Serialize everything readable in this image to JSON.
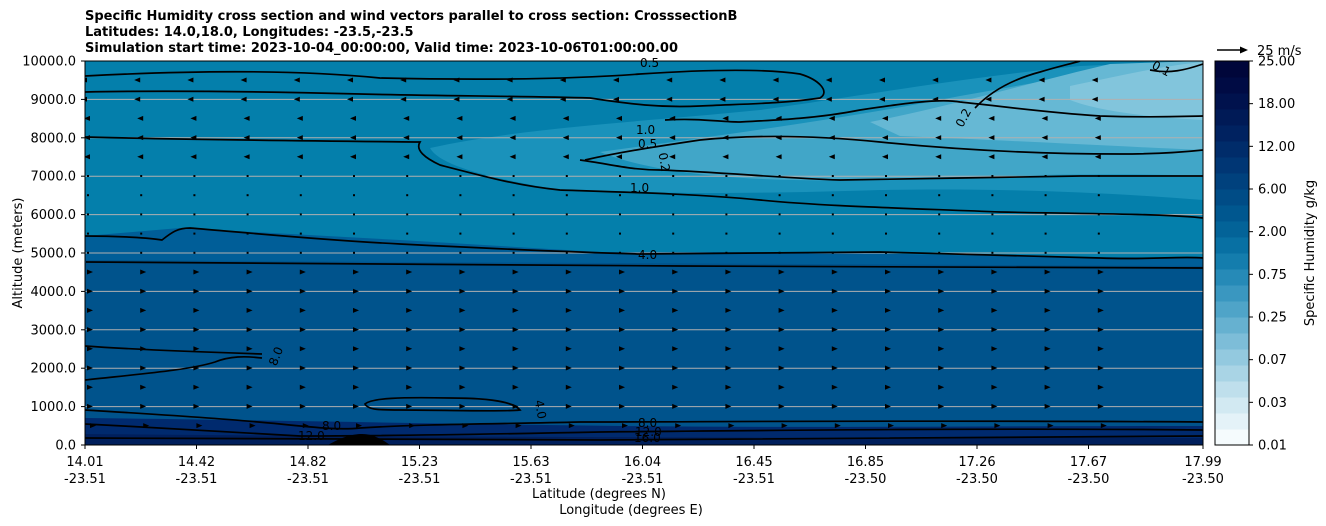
{
  "title": {
    "line1": "Specific Humidity cross section and wind vectors parallel to cross section: CrosssectionB",
    "line2": "Latitudes: 14.0,18.0, Longitudes: -23.5,-23.5",
    "line3": "Simulation start time: 2023-10-04_00:00:00, Valid time: 2023-10-06T01:00:00.00"
  },
  "chart_data": {
    "type": "contour",
    "title": "Specific Humidity cross section and wind vectors parallel to cross section: CrosssectionB",
    "xlabel_lat": "Latitude (degrees N)",
    "xlabel_lon": "Longitude (degrees E)",
    "ylabel": "Altitude (meters)",
    "ylim": [
      0,
      10000
    ],
    "y_ticks": [
      "0.0",
      "1000.0",
      "2000.0",
      "3000.0",
      "4000.0",
      "5000.0",
      "6000.0",
      "7000.0",
      "8000.0",
      "9000.0",
      "10000.0"
    ],
    "x_ticks_lat": [
      "14.01",
      "14.42",
      "14.82",
      "15.23",
      "15.63",
      "16.04",
      "16.45",
      "16.85",
      "17.26",
      "17.67",
      "17.99"
    ],
    "x_ticks_lon": [
      "-23.51",
      "-23.51",
      "-23.51",
      "-23.51",
      "-23.51",
      "-23.51",
      "-23.51",
      "-23.50",
      "-23.50",
      "-23.50",
      "-23.50"
    ],
    "colorbar": {
      "label": "Specific Humidity g/kg",
      "tick_labels": [
        "0.01",
        "0.03",
        "0.07",
        "0.25",
        "0.75",
        "2.00",
        "6.00",
        "12.00",
        "18.00",
        "25.00"
      ]
    },
    "wind_key": "25 m/s",
    "contour_labels": [
      "0.5",
      "0.1",
      "0.2",
      "1.0",
      "0.5",
      "0.2",
      "1.0",
      "4.0",
      "8.0",
      "4.0",
      "8.0",
      "12.0",
      "8.0",
      "12.0",
      "16.0"
    ]
  }
}
